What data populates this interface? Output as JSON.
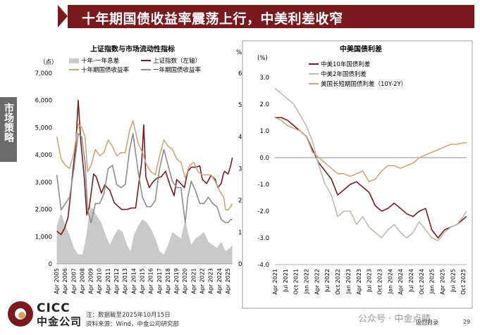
{
  "header": {
    "title": "十年期国债收益率震荡上行，中美利差收窄"
  },
  "side_tab": {
    "label": "市场策略"
  },
  "footer": {
    "note": "注：数据截至2025年10月15日",
    "source": "资料来源：Wind，中金公司研究部",
    "back": "返回目录",
    "page": "29"
  },
  "logo": {
    "en": "CICC",
    "cn": "中金公司"
  },
  "watermark": "公众号 · 中金点睛",
  "colors": {
    "maroon": "#7a1a1e",
    "gold": "#c9a77c",
    "gray": "#8c8c8c",
    "lightgray": "#c9c9c9",
    "sage": "#b8bdb0"
  },
  "chart_data": [
    {
      "type": "line",
      "title": "上证指数与市场流动性指标",
      "left_unit": "（点）",
      "right_unit": "%",
      "left_ticks": [
        "0",
        "1,000",
        "2,000",
        "3,000",
        "4,000",
        "5,000",
        "6,000",
        "7,000"
      ],
      "right_ticks": [
        "0",
        "1",
        "2",
        "3",
        "4",
        "5",
        "6"
      ],
      "ylim_left": [
        0,
        7000
      ],
      "ylim_right": [
        0,
        6
      ],
      "x_range": [
        2005.25,
        2025.83
      ],
      "x_ticks": [
        "Apr 2005",
        "Apr 2006",
        "Apr 2007",
        "Apr 2008",
        "Apr 2009",
        "Apr 2010",
        "Apr 2011",
        "Apr 2012",
        "Apr 2013",
        "Apr 2014",
        "Apr 2015",
        "Apr 2016",
        "Apr 2017",
        "Apr 2018",
        "Apr 2019",
        "Apr 2020",
        "Apr 2021",
        "Apr 2022",
        "Apr 2023",
        "Apr 2024",
        "Apr 2025"
      ],
      "legend": [
        "十年-一年息差",
        "上证指数（左轴）",
        "十年期国债收益率",
        "一年期国债收益率"
      ],
      "series": [
        {
          "name": "十年-一年息差",
          "axis": "right",
          "style": "area",
          "color": "#c9c9c9",
          "x": [
            2005.3,
            2005.8,
            2006.3,
            2006.8,
            2007.3,
            2007.8,
            2008.3,
            2008.7,
            2008.9,
            2009.2,
            2009.6,
            2010.0,
            2010.5,
            2011.0,
            2011.5,
            2012.0,
            2012.5,
            2013.0,
            2013.5,
            2013.9,
            2014.3,
            2014.8,
            2015.3,
            2015.8,
            2016.3,
            2016.8,
            2017.3,
            2017.8,
            2018.3,
            2018.8,
            2019.3,
            2019.8,
            2020.3,
            2020.6,
            2021.0,
            2021.5,
            2022.0,
            2022.5,
            2023.0,
            2023.5,
            2024.0,
            2024.5,
            2025.0,
            2025.5,
            2025.8
          ],
          "y": [
            1.2,
            1.6,
            1.2,
            0.9,
            0.5,
            0.3,
            0.3,
            0.8,
            1.2,
            1.8,
            1.7,
            1.5,
            1.3,
            0.9,
            0.6,
            0.9,
            1.1,
            1.0,
            0.6,
            0.4,
            0.9,
            1.2,
            1.4,
            1.3,
            1.1,
            0.8,
            0.4,
            0.3,
            0.6,
            1.0,
            0.9,
            0.8,
            1.4,
            1.0,
            0.6,
            0.8,
            0.9,
            1.0,
            0.7,
            0.6,
            0.5,
            0.7,
            0.4,
            0.5,
            0.6
          ]
        },
        {
          "name": "上证指数（左轴）",
          "axis": "left",
          "color": "#7a1a1e",
          "x": [
            2005.3,
            2005.8,
            2006.2,
            2006.6,
            2006.9,
            2007.2,
            2007.5,
            2007.8,
            2008.1,
            2008.5,
            2008.8,
            2009.1,
            2009.6,
            2009.9,
            2010.5,
            2010.9,
            2011.5,
            2012.0,
            2012.5,
            2012.9,
            2013.5,
            2014.0,
            2014.5,
            2014.9,
            2015.2,
            2015.45,
            2015.7,
            2016.1,
            2016.5,
            2017.0,
            2017.5,
            2018.0,
            2018.5,
            2019.0,
            2019.3,
            2019.9,
            2020.2,
            2020.6,
            2021.0,
            2021.5,
            2022.0,
            2022.3,
            2022.8,
            2023.3,
            2023.8,
            2024.1,
            2024.5,
            2024.75,
            2024.9,
            2025.3,
            2025.6,
            2025.8
          ],
          "y": [
            1200,
            1080,
            1300,
            1700,
            2500,
            3500,
            4300,
            6000,
            4500,
            3200,
            1800,
            2100,
            3300,
            3200,
            2600,
            2900,
            2700,
            2250,
            2100,
            2000,
            2000,
            2050,
            2050,
            3000,
            3700,
            5100,
            3200,
            2800,
            3000,
            3150,
            3200,
            3400,
            2900,
            2500,
            3100,
            2900,
            2800,
            3400,
            3550,
            3550,
            3600,
            3100,
            2950,
            3250,
            3100,
            2800,
            2950,
            3300,
            3400,
            3300,
            3600,
            3900
          ]
        },
        {
          "name": "十年期国债收益率",
          "axis": "right",
          "color": "#c9a77c",
          "x": [
            2005.3,
            2005.8,
            2006.3,
            2006.8,
            2007.3,
            2007.8,
            2008.2,
            2008.6,
            2008.9,
            2009.3,
            2009.8,
            2010.3,
            2010.8,
            2011.3,
            2011.8,
            2012.3,
            2012.8,
            2013.3,
            2013.8,
            2014.2,
            2014.8,
            2015.3,
            2015.8,
            2016.3,
            2016.8,
            2017.3,
            2017.8,
            2018.3,
            2018.8,
            2019.3,
            2019.8,
            2020.3,
            2020.8,
            2021.3,
            2021.8,
            2022.3,
            2022.8,
            2023.3,
            2023.8,
            2024.3,
            2024.8,
            2025.0,
            2025.3,
            2025.6,
            2025.8
          ],
          "y": [
            4.0,
            3.3,
            3.1,
            3.0,
            3.5,
            4.4,
            4.3,
            4.0,
            2.9,
            3.1,
            3.6,
            3.4,
            3.5,
            3.9,
            3.7,
            3.4,
            3.5,
            3.5,
            4.2,
            4.5,
            3.8,
            3.5,
            3.1,
            2.9,
            2.8,
            3.4,
            3.9,
            3.7,
            3.6,
            3.3,
            3.2,
            2.7,
            3.1,
            3.2,
            2.9,
            2.8,
            2.8,
            2.8,
            2.6,
            2.3,
            2.1,
            1.7,
            1.7,
            1.8,
            1.9
          ]
        },
        {
          "name": "一年期国债收益率",
          "axis": "right",
          "color": "#8c8c8c",
          "x": [
            2005.3,
            2005.8,
            2006.3,
            2006.8,
            2007.3,
            2007.8,
            2008.2,
            2008.6,
            2008.9,
            2009.3,
            2009.8,
            2010.3,
            2010.8,
            2011.3,
            2011.8,
            2012.3,
            2012.8,
            2013.3,
            2013.8,
            2014.2,
            2014.8,
            2015.3,
            2015.8,
            2016.3,
            2016.8,
            2017.3,
            2017.8,
            2018.3,
            2018.8,
            2019.3,
            2019.8,
            2020.3,
            2020.6,
            2021.0,
            2021.5,
            2022.0,
            2022.5,
            2023.0,
            2023.5,
            2024.0,
            2024.5,
            2025.0,
            2025.3,
            2025.6,
            2025.8
          ],
          "y": [
            2.8,
            1.7,
            1.9,
            2.1,
            3.0,
            4.1,
            4.0,
            3.2,
            1.7,
            1.3,
            1.9,
            1.9,
            2.2,
            3.0,
            3.1,
            2.5,
            2.4,
            2.5,
            3.6,
            4.1,
            2.9,
            2.1,
            1.8,
            1.8,
            2.0,
            3.0,
            3.6,
            3.1,
            2.6,
            2.4,
            2.4,
            1.3,
            2.1,
            2.6,
            2.3,
            1.9,
            1.9,
            2.1,
            1.9,
            1.8,
            1.4,
            1.3,
            1.3,
            1.4,
            1.4
          ]
        }
      ]
    },
    {
      "type": "line",
      "title": "中美国债利差",
      "y_unit": "(%)",
      "ylim": [
        -4,
        3
      ],
      "y_ticks": [
        "3.0",
        "2.0",
        "1.0",
        "0.0",
        "-1.0",
        "-2.0",
        "-3.0",
        "-4.0"
      ],
      "x_range": [
        2021.25,
        2025.83
      ],
      "x_ticks": [
        "Apr 2021",
        "Jul 2021",
        "Oct 2021",
        "Jan 2022",
        "Apr 2022",
        "Jul 2022",
        "Oct 2022",
        "Jan 2023",
        "Apr 2023",
        "Jul 2023",
        "Oct 2023",
        "Jan 2024",
        "Apr 2024",
        "Jul 2024",
        "Oct 2024",
        "Jan 2025",
        "Apr 2025",
        "Jul 2025",
        "Oct 2025"
      ],
      "legend": [
        "中美10年国债利差",
        "中美2年国债利差",
        "美国长短期国债利差（10Y-2Y）"
      ],
      "series": [
        {
          "name": "中美10年国债利差",
          "color": "#7a1a1e",
          "x": [
            2021.25,
            2021.4,
            2021.55,
            2021.7,
            2021.85,
            2022.0,
            2022.15,
            2022.3,
            2022.45,
            2022.6,
            2022.75,
            2022.9,
            2023.05,
            2023.2,
            2023.35,
            2023.5,
            2023.65,
            2023.8,
            2023.95,
            2024.1,
            2024.25,
            2024.4,
            2024.55,
            2024.7,
            2024.85,
            2025.0,
            2025.15,
            2025.3,
            2025.45,
            2025.6,
            2025.75,
            2025.83
          ],
          "y": [
            1.5,
            1.5,
            1.4,
            1.2,
            1.0,
            0.8,
            0.3,
            -0.2,
            -0.5,
            -0.8,
            -1.4,
            -1.2,
            -1.0,
            -0.9,
            -1.1,
            -1.3,
            -1.8,
            -2.0,
            -1.9,
            -1.7,
            -1.9,
            -2.1,
            -2.2,
            -2.0,
            -1.9,
            -2.7,
            -3.0,
            -2.7,
            -2.6,
            -2.5,
            -2.3,
            -2.2
          ]
        },
        {
          "name": "中美2年国债利差",
          "color": "#b8bdb0",
          "x": [
            2021.25,
            2021.4,
            2021.55,
            2021.7,
            2021.85,
            2022.0,
            2022.15,
            2022.3,
            2022.45,
            2022.6,
            2022.75,
            2022.9,
            2023.05,
            2023.2,
            2023.35,
            2023.5,
            2023.65,
            2023.8,
            2023.95,
            2024.1,
            2024.25,
            2024.4,
            2024.55,
            2024.7,
            2024.85,
            2025.0,
            2025.15,
            2025.3,
            2025.45,
            2025.6,
            2025.75,
            2025.83
          ],
          "y": [
            2.6,
            2.4,
            2.2,
            2.0,
            1.6,
            1.2,
            0.6,
            -0.3,
            -1.0,
            -1.4,
            -2.2,
            -2.0,
            -2.0,
            -2.5,
            -2.2,
            -2.6,
            -2.8,
            -3.0,
            -2.7,
            -2.5,
            -2.8,
            -3.0,
            -2.8,
            -2.4,
            -2.7,
            -3.0,
            -3.1,
            -2.8,
            -2.6,
            -2.5,
            -2.2,
            -2.0
          ]
        },
        {
          "name": "美国长短期国债利差（10Y-2Y）",
          "color": "#c9a77c",
          "x": [
            2021.25,
            2021.4,
            2021.55,
            2021.7,
            2021.85,
            2022.0,
            2022.15,
            2022.3,
            2022.45,
            2022.6,
            2022.75,
            2022.9,
            2023.05,
            2023.2,
            2023.35,
            2023.5,
            2023.65,
            2023.8,
            2023.95,
            2024.1,
            2024.25,
            2024.4,
            2024.55,
            2024.7,
            2024.85,
            2025.0,
            2025.15,
            2025.3,
            2025.45,
            2025.6,
            2025.75,
            2025.83
          ],
          "y": [
            1.5,
            1.4,
            1.2,
            1.1,
            1.0,
            0.8,
            0.2,
            0.0,
            -0.2,
            -0.4,
            -0.6,
            -0.6,
            -0.7,
            -0.6,
            -0.5,
            -0.9,
            -0.8,
            -0.5,
            -0.3,
            -0.3,
            -0.4,
            -0.3,
            -0.2,
            0.0,
            0.1,
            0.2,
            0.3,
            0.4,
            0.5,
            0.5,
            0.55,
            0.55
          ]
        }
      ]
    }
  ]
}
